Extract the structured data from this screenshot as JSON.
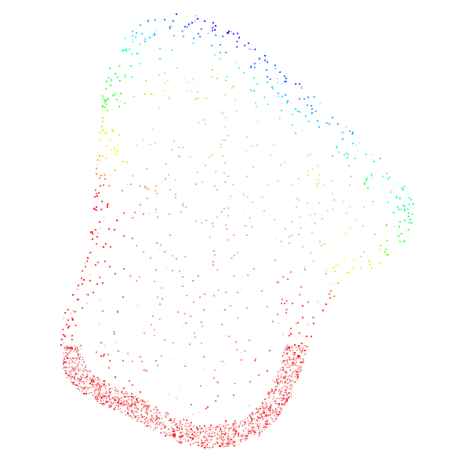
{
  "scene": {
    "subject": "point-cloud-blob",
    "background_color": "#ffffff",
    "palette": [
      "#ff0000",
      "#ff8000",
      "#ffff00",
      "#00ff00",
      "#00ffff",
      "#0000ff",
      "#7f00ff",
      "#ff00ff"
    ]
  }
}
